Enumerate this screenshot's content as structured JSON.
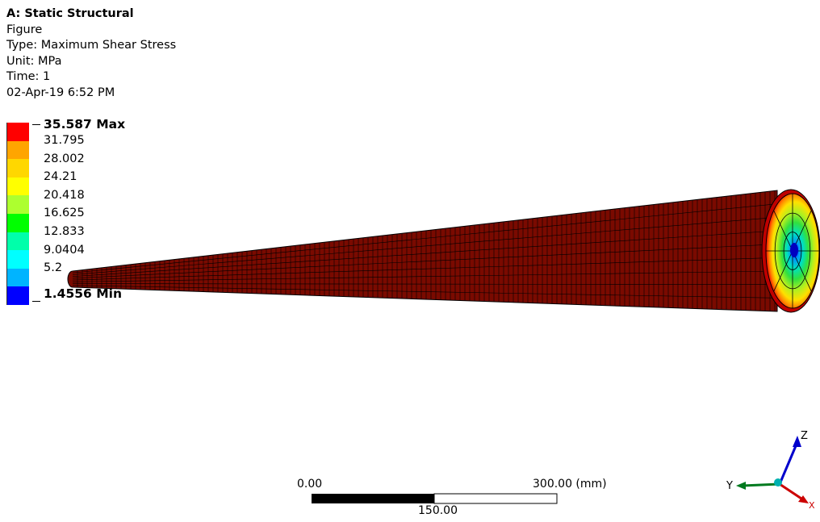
{
  "header": {
    "title": "A: Static Structural",
    "line_figure": "Figure",
    "line_type": "Type: Maximum Shear Stress",
    "line_unit": "Unit: MPa",
    "line_time": "Time: 1",
    "line_date": "02-Apr-19 6:52 PM"
  },
  "legend": {
    "max_label": "35.587 Max",
    "min_label": "1.4556 Min",
    "values": [
      "31.795",
      "28.002",
      "24.21",
      "20.418",
      "16.625",
      "12.833",
      "9.0404",
      "5.2"
    ],
    "colors": [
      "#ff0000",
      "#ffa500",
      "#ffd700",
      "#ffff00",
      "#adff2f",
      "#00ff00",
      "#00ffaa",
      "#00ffff",
      "#00b4ff",
      "#0000ff"
    ]
  },
  "scale_bar": {
    "left_label": "0.00",
    "right_label": "300.00 (mm)",
    "mid_label": "150.00"
  },
  "triad": {
    "z_label": "Z",
    "y_label": "Y",
    "x_label": "X"
  },
  "model": {
    "surface_color": "#7a0a00",
    "mesh_color": "#000000"
  }
}
